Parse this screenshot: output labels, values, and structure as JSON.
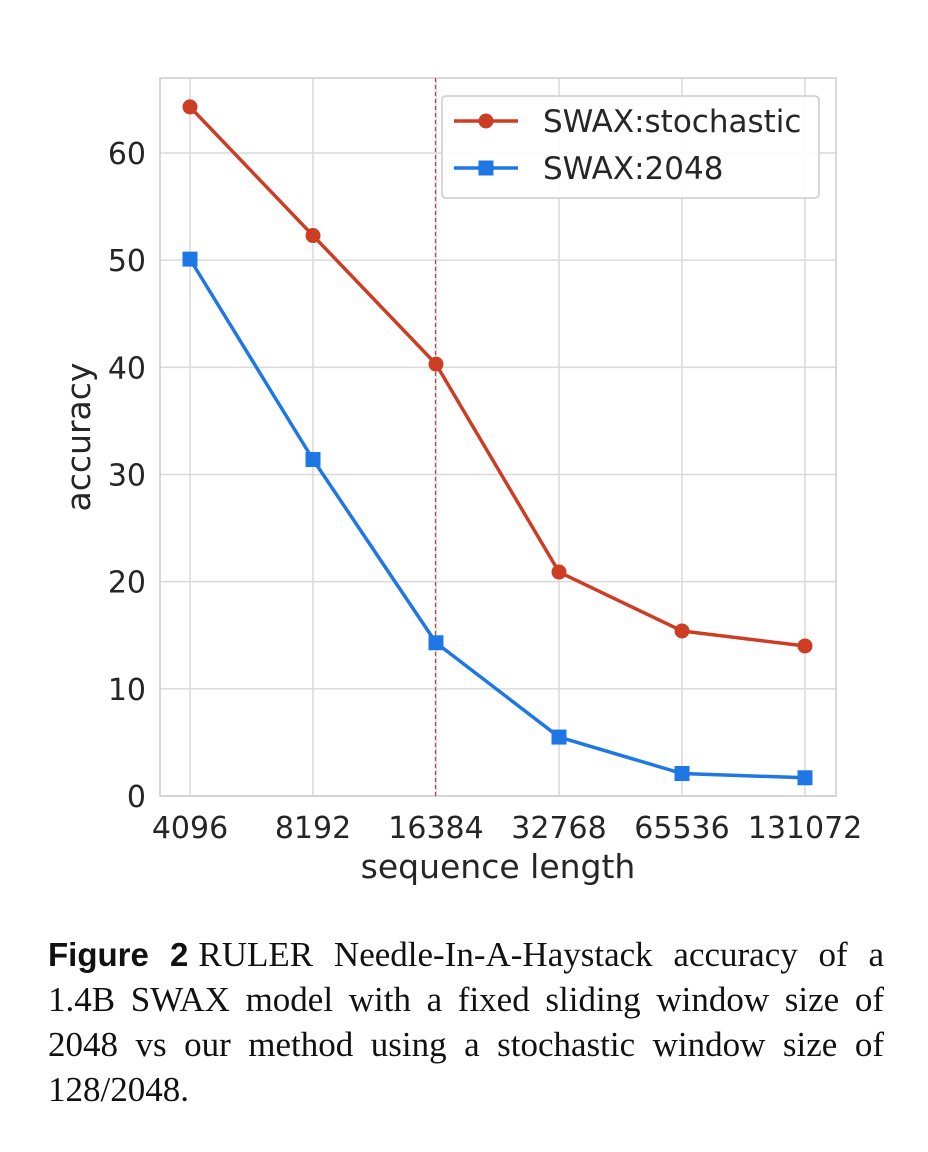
{
  "chart_data": {
    "type": "line",
    "categories": [
      "4096",
      "8192",
      "16384",
      "32768",
      "65536",
      "131072"
    ],
    "series": [
      {
        "name": "SWAX:stochastic",
        "color": "#CC3D24",
        "marker": "circle",
        "values": [
          64.3,
          52.3,
          40.3,
          20.9,
          15.4,
          14.0
        ]
      },
      {
        "name": "SWAX:2048",
        "color": "#1F77E6",
        "marker": "square",
        "values": [
          50.1,
          31.4,
          14.3,
          5.5,
          2.1,
          1.7
        ]
      }
    ],
    "xlabel": "sequence length",
    "ylabel": "accuracy",
    "ylim": [
      0,
      67
    ],
    "yticks": [
      "0",
      "10",
      "20",
      "30",
      "40",
      "50",
      "60"
    ],
    "reference_line": {
      "category": "16384",
      "style": "dashed",
      "color": "#B5483F"
    },
    "grid": true,
    "legend_position": "top-right"
  },
  "caption": {
    "label": "Figure 2",
    "text": "RULER Needle-In-A-Haystack accuracy of a 1.4B SWAX model with a fixed sliding window size of 2048 vs our method using a stochastic window size of 128/2048."
  }
}
